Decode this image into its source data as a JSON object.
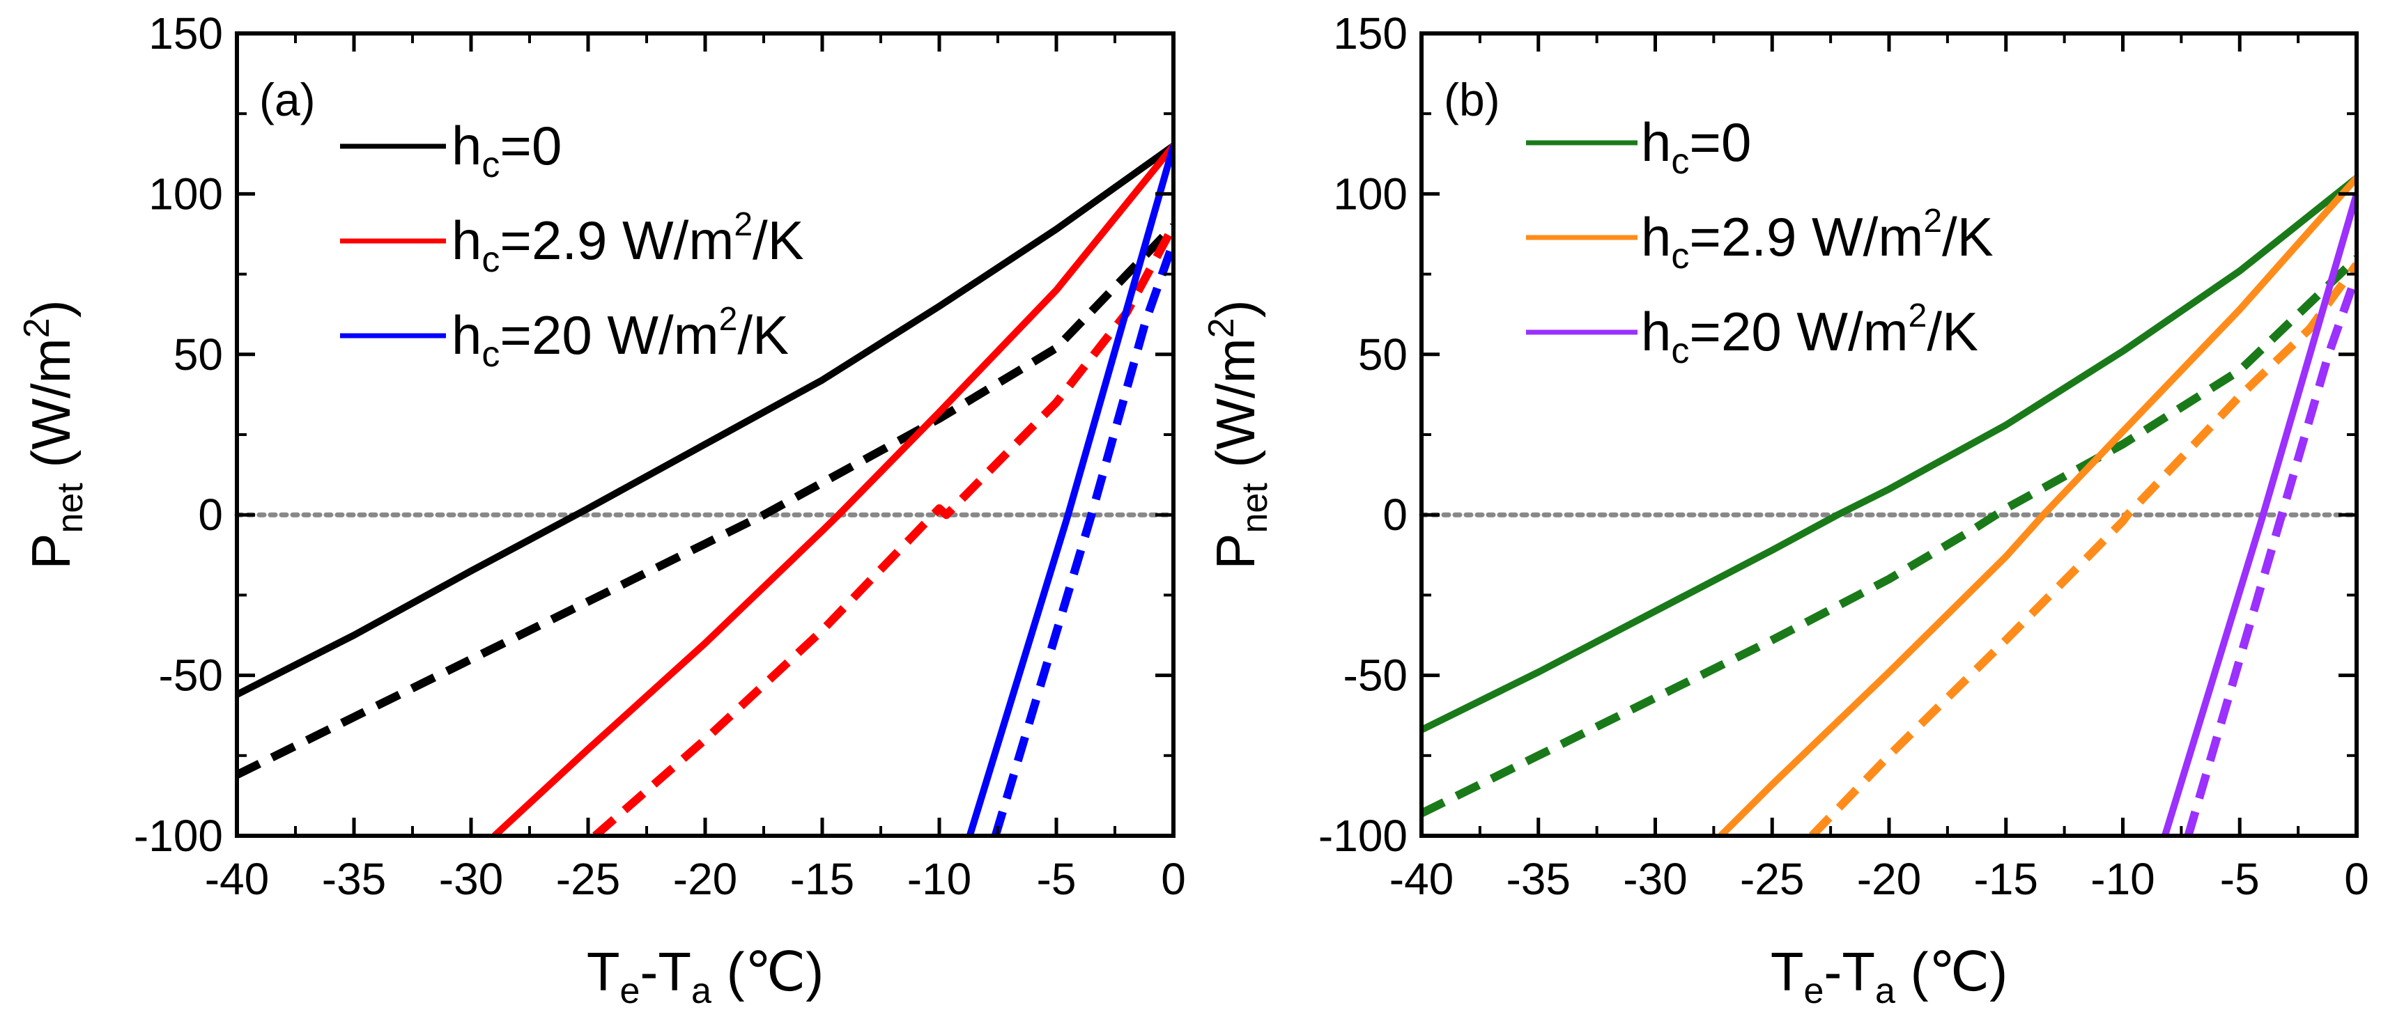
{
  "chart_data": [
    {
      "type": "line",
      "panel_label": "(a)",
      "xlabel": {
        "main": "T",
        "sub1": "e",
        "mid": "-T",
        "sub2": "a",
        "unit": " (℃)"
      },
      "ylabel": {
        "main": "P",
        "sub": "net",
        "unit": " (W/m",
        "sup": "2",
        "close": ")"
      },
      "xlim": [
        -40,
        0
      ],
      "ylim": [
        -100,
        150
      ],
      "xticks": [
        -40,
        -35,
        -30,
        -25,
        -20,
        -15,
        -10,
        -5,
        0
      ],
      "yticks": [
        -100,
        -50,
        0,
        50,
        100,
        150
      ],
      "zero_line": {
        "y": 0,
        "style": "dotted",
        "color": "#888888"
      },
      "legend_position": "top-left",
      "series": [
        {
          "name": "hc=0",
          "legend": {
            "pre": "h",
            "sub": "c",
            "post": "=0",
            "sup": "",
            "tail": ""
          },
          "color": "#000000",
          "style": "solid",
          "points": [
            [
              -40,
              -56
            ],
            [
              -35,
              -37.5
            ],
            [
              -30,
              -17.5
            ],
            [
              -25,
              2
            ],
            [
              -20,
              22
            ],
            [
              -15,
              42
            ],
            [
              -10,
              65
            ],
            [
              -5,
              89
            ],
            [
              0,
              115
            ]
          ]
        },
        {
          "name": "hc=0 (dashed)",
          "color": "#000000",
          "style": "dashed",
          "points": [
            [
              -40,
              -81
            ],
            [
              -35,
              -63
            ],
            [
              -30,
              -45
            ],
            [
              -25,
              -27
            ],
            [
              -20,
              -9
            ],
            [
              -17.5,
              0
            ],
            [
              -15,
              10
            ],
            [
              -10,
              30
            ],
            [
              -5,
              52
            ],
            [
              0,
              90
            ]
          ]
        },
        {
          "name": "hc=2.9 W/m2/K",
          "legend": {
            "pre": "h",
            "sub": "c",
            "post": "=2.9 W/m",
            "sup": "2",
            "tail": "/K"
          },
          "color": "#ff0000",
          "style": "solid",
          "points": [
            [
              -29,
              -100
            ],
            [
              -25,
              -73
            ],
            [
              -20,
              -40
            ],
            [
              -15,
              -5
            ],
            [
              -14.3,
              0
            ],
            [
              -10,
              32
            ],
            [
              -5,
              70
            ],
            [
              0,
              115
            ]
          ]
        },
        {
          "name": "hc=2.9 W/m2/K (dashed)",
          "color": "#ff0000",
          "style": "dashed",
          "points": [
            [
              -24.7,
              -100
            ],
            [
              -20,
              -70
            ],
            [
              -15,
              -36
            ],
            [
              -10,
              2
            ],
            [
              -9.7,
              0
            ],
            [
              -5,
              35
            ],
            [
              -2,
              63
            ],
            [
              0,
              90
            ]
          ]
        },
        {
          "name": "hc=20 W/m2/K",
          "legend": {
            "pre": "h",
            "sub": "c",
            "post": "=20 W/m",
            "sup": "2",
            "tail": "/K"
          },
          "color": "#0000ff",
          "style": "solid",
          "points": [
            [
              -8.7,
              -100
            ],
            [
              -4.5,
              0
            ],
            [
              0,
              115
            ]
          ]
        },
        {
          "name": "hc=20 W/m2/K (dashed)",
          "color": "#0000ff",
          "style": "dashed",
          "points": [
            [
              -7.6,
              -100
            ],
            [
              -3.5,
              0
            ],
            [
              -1.2,
              60
            ],
            [
              0,
              85
            ]
          ]
        }
      ]
    },
    {
      "type": "line",
      "panel_label": "(b)",
      "xlabel": {
        "main": "T",
        "sub1": "e",
        "mid": "-T",
        "sub2": "a",
        "unit": " (℃)"
      },
      "ylabel": {
        "main": "P",
        "sub": "net",
        "unit": " (W/m",
        "sup": "2",
        "close": ")"
      },
      "xlim": [
        -40,
        0
      ],
      "ylim": [
        -100,
        150
      ],
      "xticks": [
        -40,
        -35,
        -30,
        -25,
        -20,
        -15,
        -10,
        -5,
        0
      ],
      "yticks": [
        -100,
        -50,
        0,
        50,
        100,
        150
      ],
      "zero_line": {
        "y": 0,
        "style": "dotted",
        "color": "#888888"
      },
      "legend_position": "top-left",
      "series": [
        {
          "name": "hc=0",
          "legend": {
            "pre": "h",
            "sub": "c",
            "post": "=0",
            "sup": "",
            "tail": ""
          },
          "color": "#1a7a1a",
          "style": "solid",
          "points": [
            [
              -40,
              -67
            ],
            [
              -35,
              -49
            ],
            [
              -30,
              -30
            ],
            [
              -25,
              -11
            ],
            [
              -22.2,
              0
            ],
            [
              -20,
              8
            ],
            [
              -15,
              28
            ],
            [
              -10,
              51
            ],
            [
              -5,
              76
            ],
            [
              0,
              105
            ]
          ]
        },
        {
          "name": "hc=0 (dashed)",
          "color": "#1a7a1a",
          "style": "dashed",
          "points": [
            [
              -40,
              -93
            ],
            [
              -35,
              -75
            ],
            [
              -30,
              -57
            ],
            [
              -25,
              -39
            ],
            [
              -20,
              -20
            ],
            [
              -16.5,
              -5
            ],
            [
              -15,
              2
            ],
            [
              -10,
              22
            ],
            [
              -5,
              45
            ],
            [
              0,
              80
            ]
          ]
        },
        {
          "name": "hc=2.9 W/m2/K",
          "legend": {
            "pre": "h",
            "sub": "c",
            "post": "=2.9 W/m",
            "sup": "2",
            "tail": "/K"
          },
          "color": "#ff8c1a",
          "style": "solid",
          "points": [
            [
              -27.2,
              -100
            ],
            [
              -25,
              -84
            ],
            [
              -20,
              -49
            ],
            [
              -15,
              -13
            ],
            [
              -13.4,
              0
            ],
            [
              -10,
              26
            ],
            [
              -5,
              64
            ],
            [
              0,
              105
            ]
          ]
        },
        {
          "name": "hc=2.9 W/m2/K (dashed)",
          "color": "#ff8c1a",
          "style": "dashed",
          "points": [
            [
              -23.3,
              -100
            ],
            [
              -20,
              -75
            ],
            [
              -15,
              -39
            ],
            [
              -10,
              -2
            ],
            [
              -9.8,
              0
            ],
            [
              -5,
              37
            ],
            [
              -2,
              58
            ],
            [
              0,
              78
            ]
          ]
        },
        {
          "name": "hc=20 W/m2/K",
          "legend": {
            "pre": "h",
            "sub": "c",
            "post": "=20 W/m",
            "sup": "2",
            "tail": "/K"
          },
          "color": "#9b30ff",
          "style": "solid",
          "points": [
            [
              -8.2,
              -100
            ],
            [
              -4,
              0
            ],
            [
              0,
              100
            ]
          ]
        },
        {
          "name": "hc=20 W/m2/K (dashed)",
          "color": "#9b30ff",
          "style": "dashed",
          "points": [
            [
              -7.2,
              -100
            ],
            [
              -3.2,
              0
            ],
            [
              -1.2,
              50
            ],
            [
              0,
              75
            ]
          ]
        }
      ]
    }
  ]
}
